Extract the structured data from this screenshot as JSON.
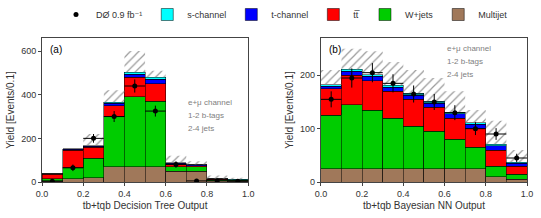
{
  "chart_data": [
    {
      "type": "bar",
      "stacked": true,
      "legend": "top",
      "grid": false,
      "xlabel": "tb+tqb Decision Tree Output",
      "ylabel": "Yield [Events/0.1]",
      "annotations": [
        "(a)",
        "e+μ channel",
        "1-2 b-tags",
        "2-4 jets"
      ],
      "bins": [
        0.0,
        0.1,
        0.2,
        0.3,
        0.4,
        0.5,
        0.6,
        0.7,
        0.8,
        0.9,
        1.0
      ],
      "xlim": [
        0,
        1
      ],
      "xticks": [
        {
          "value": 0,
          "label": "0.0"
        },
        0.2,
        0.4,
        0.6,
        0.8,
        {
          "value": 1.0,
          "label": "1.0"
        }
      ],
      "ylim": [
        0,
        660
      ],
      "yticks": [
        0,
        200,
        400,
        600
      ],
      "series": [
        {
          "name": "Multijet",
          "color": "#a0785a",
          "values": [
            5,
            15,
            20,
            70,
            70,
            70,
            50,
            50,
            5,
            5
          ]
        },
        {
          "name": "W+jets",
          "color": "#00cc00",
          "values": [
            10,
            50,
            90,
            230,
            320,
            300,
            20,
            20,
            5,
            3
          ]
        },
        {
          "name": "tt̅",
          "color": "#ff0000",
          "values": [
            20,
            80,
            50,
            50,
            90,
            80,
            10,
            5,
            3,
            2
          ]
        },
        {
          "name": "t-channel",
          "color": "#0000ff",
          "values": [
            2,
            5,
            5,
            10,
            15,
            20,
            5,
            3,
            1,
            1
          ]
        },
        {
          "name": "s-channel",
          "color": "#00ffff",
          "values": [
            1,
            2,
            2,
            5,
            8,
            10,
            3,
            2,
            1,
            1
          ]
        },
        {
          "name": "DØ 0.9 fb⁻¹",
          "type": "scatter",
          "marker": "circle",
          "color": "#000000",
          "x": [
            0.05,
            0.15,
            0.25,
            0.35,
            0.45,
            0.55,
            0.65,
            0.75,
            0.85,
            0.95
          ],
          "values": [
            3,
            65,
            200,
            300,
            440,
            325,
            80,
            5,
            5,
            3
          ],
          "errors": [
            5,
            15,
            20,
            25,
            30,
            25,
            15,
            5,
            4,
            3
          ],
          "x_error": 0.05
        }
      ],
      "syst_top": [
        40,
        130,
        220,
        420,
        600,
        510,
        120,
        95,
        30,
        20
      ]
    },
    {
      "type": "bar",
      "stacked": true,
      "grid": false,
      "xlabel": "tb+tqb Bayesian NN Output",
      "ylabel": "Yield [Events/0.1]",
      "annotations": [
        "(b)",
        "e+μ channel",
        "1-2 b-tags",
        "2-4 jets"
      ],
      "bins": [
        0.0,
        0.1,
        0.2,
        0.3,
        0.4,
        0.5,
        0.6,
        0.7,
        0.8,
        0.9,
        1.0
      ],
      "xlim": [
        0,
        1
      ],
      "xticks": [
        {
          "value": 0,
          "label": "0.0"
        },
        0.2,
        0.4,
        0.6,
        0.8,
        {
          "value": 1.0,
          "label": "1.0"
        }
      ],
      "ylim": [
        0,
        270
      ],
      "yticks": [
        0,
        100,
        200
      ],
      "series": [
        {
          "name": "Multijet",
          "color": "#a0785a",
          "values": [
            25,
            25,
            25,
            25,
            25,
            25,
            25,
            25,
            10,
            5
          ]
        },
        {
          "name": "W+jets",
          "color": "#00cc00",
          "values": [
            100,
            120,
            110,
            95,
            80,
            70,
            55,
            40,
            20,
            10
          ]
        },
        {
          "name": "tt̅",
          "color": "#ff0000",
          "values": [
            50,
            55,
            55,
            50,
            50,
            45,
            40,
            35,
            30,
            15
          ]
        },
        {
          "name": "t-channel",
          "color": "#0000ff",
          "values": [
            5,
            8,
            8,
            8,
            8,
            8,
            8,
            8,
            8,
            5
          ]
        },
        {
          "name": "s-channel",
          "color": "#00ffff",
          "values": [
            2,
            3,
            3,
            3,
            3,
            3,
            3,
            3,
            3,
            2
          ]
        },
        {
          "name": "DØ 0.9 fb⁻¹",
          "type": "scatter",
          "marker": "circle",
          "color": "#000000",
          "x": [
            0.05,
            0.15,
            0.25,
            0.35,
            0.45,
            0.55,
            0.65,
            0.75,
            0.85,
            0.95
          ],
          "values": [
            155,
            195,
            205,
            185,
            165,
            150,
            130,
            100,
            90,
            45
          ],
          "errors": [
            15,
            18,
            18,
            17,
            16,
            15,
            14,
            12,
            11,
            8
          ],
          "x_error": 0.05
        }
      ],
      "syst_top": [
        210,
        250,
        245,
        225,
        210,
        195,
        170,
        135,
        115,
        60
      ]
    }
  ]
}
